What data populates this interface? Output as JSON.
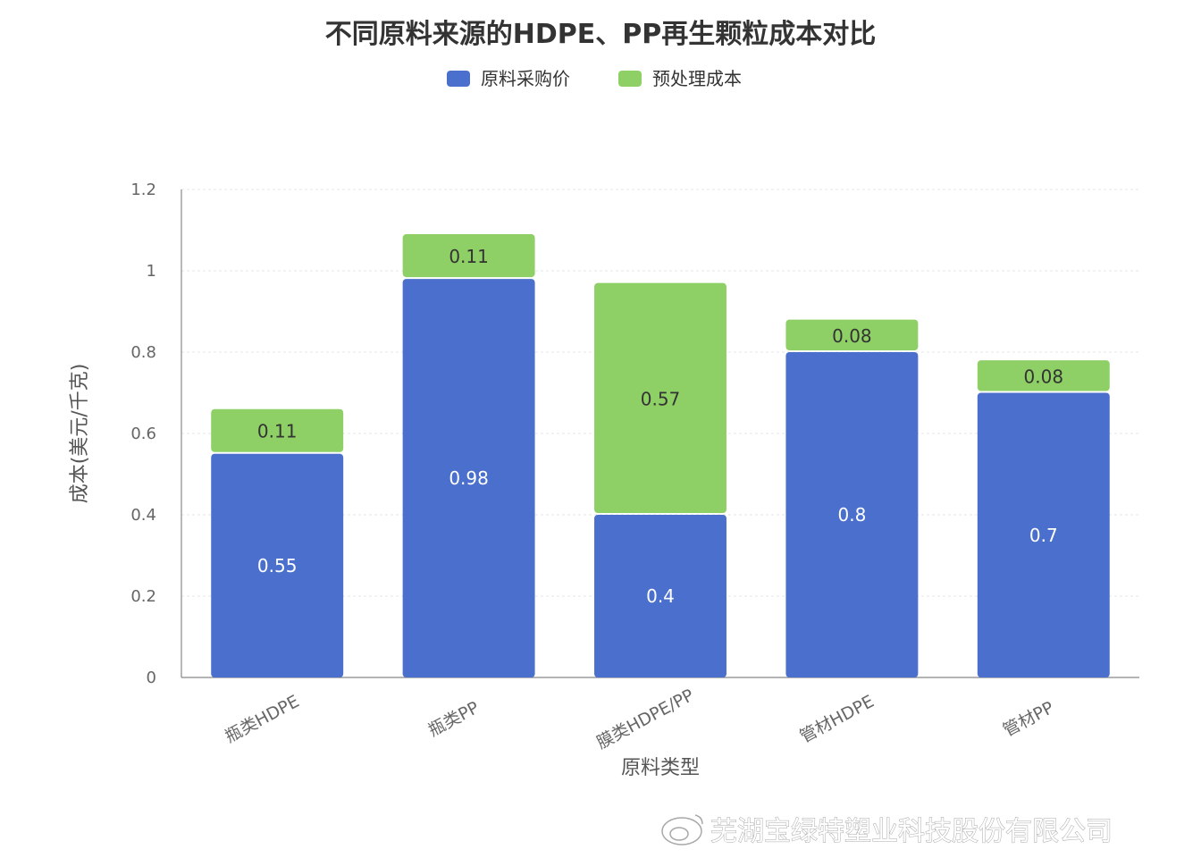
{
  "chart_data": {
    "type": "bar",
    "stacked": true,
    "title": "不同原料来源的HDPE、PP再生颗粒成本对比",
    "xlabel": "原料类型",
    "ylabel": "成本(美元/千克)",
    "categories": [
      "瓶类HDPE",
      "瓶类PP",
      "膜类HDPE/PP",
      "管材HDPE",
      "管材PP"
    ],
    "series": [
      {
        "name": "原料采购价",
        "color": "#4a6fcc",
        "values": [
          0.55,
          0.98,
          0.4,
          0.8,
          0.7
        ]
      },
      {
        "name": "预处理成本",
        "color": "#8ed066",
        "values": [
          0.11,
          0.11,
          0.57,
          0.08,
          0.08
        ]
      }
    ],
    "ylim": [
      0,
      1.2
    ],
    "yticks": [
      0,
      0.2,
      0.4,
      0.6,
      0.8,
      1,
      1.2
    ],
    "ytick_labels": [
      "0",
      "0.2",
      "0.4",
      "0.6",
      "0.8",
      "1",
      "1.2"
    ],
    "grid": true,
    "legend_position": "top-center"
  },
  "watermark": "芜湖宝绿特塑业科技股份有限公司"
}
